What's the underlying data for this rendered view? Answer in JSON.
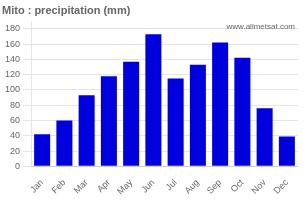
{
  "chart_data": {
    "type": "bar",
    "title": "Mito : precipitation (mm)",
    "categories": [
      "Jan",
      "Feb",
      "Mar",
      "Apr",
      "May",
      "Jun",
      "Jul",
      "Aug",
      "Sep",
      "Oct",
      "Nov",
      "Dec"
    ],
    "values": [
      42,
      60,
      93,
      118,
      137,
      173,
      115,
      133,
      162,
      142,
      76,
      39
    ],
    "color": "#0000dd",
    "ylim": [
      0,
      190
    ],
    "yticks": [
      0,
      20,
      40,
      60,
      80,
      100,
      120,
      140,
      160,
      180
    ],
    "grid": true,
    "annotations": [
      "www.allmetsat.com"
    ]
  }
}
